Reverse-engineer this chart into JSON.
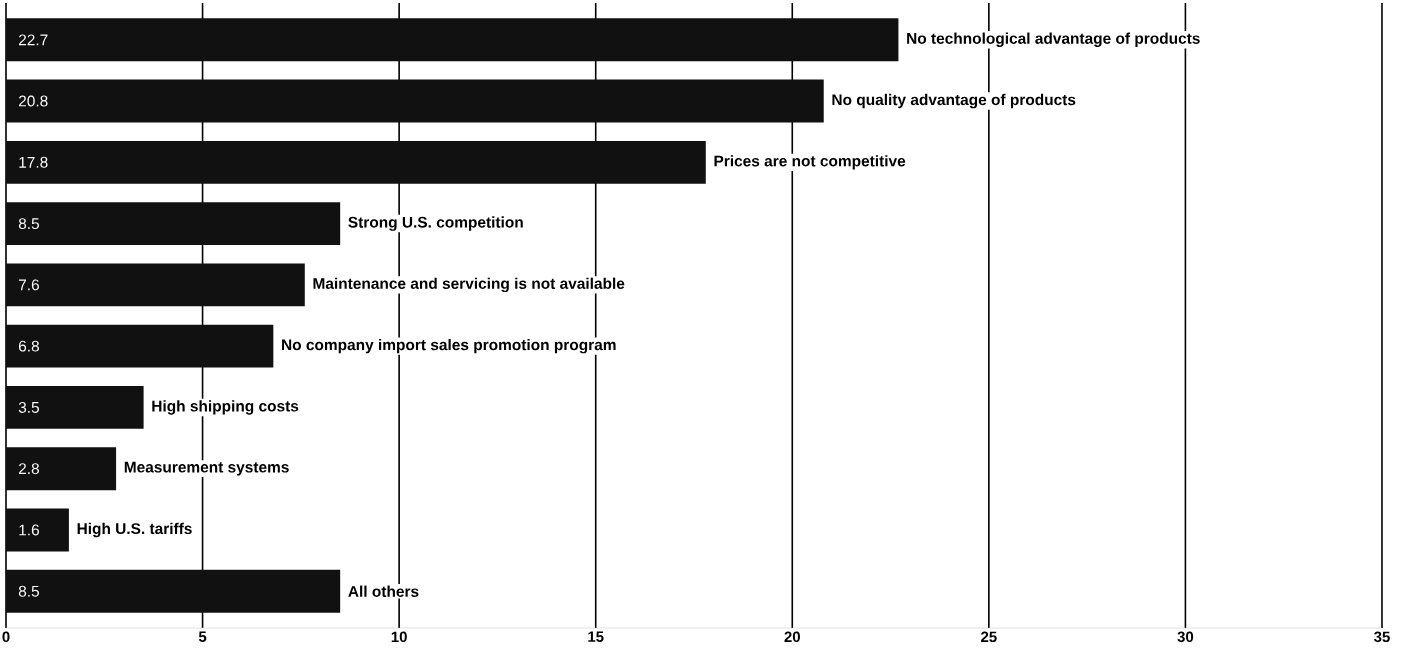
{
  "chart_data": {
    "type": "bar",
    "orientation": "horizontal",
    "categories": [
      "No technological advantage of products",
      "No quality advantage of products",
      "Prices are not competitive",
      "Strong U.S. competition",
      "Maintenance and servicing is not available",
      "No company import sales promotion program",
      "High shipping costs",
      "Measurement systems",
      "High U.S. tariffs",
      "All others"
    ],
    "values": [
      22.7,
      20.8,
      17.8,
      8.5,
      7.6,
      6.8,
      3.5,
      2.8,
      1.6,
      8.5
    ],
    "color": "#111111",
    "xlim": [
      0,
      35
    ],
    "xticks": [
      0,
      5,
      10,
      15,
      20,
      25,
      30,
      35
    ],
    "grid": "x",
    "data_labels": true
  }
}
